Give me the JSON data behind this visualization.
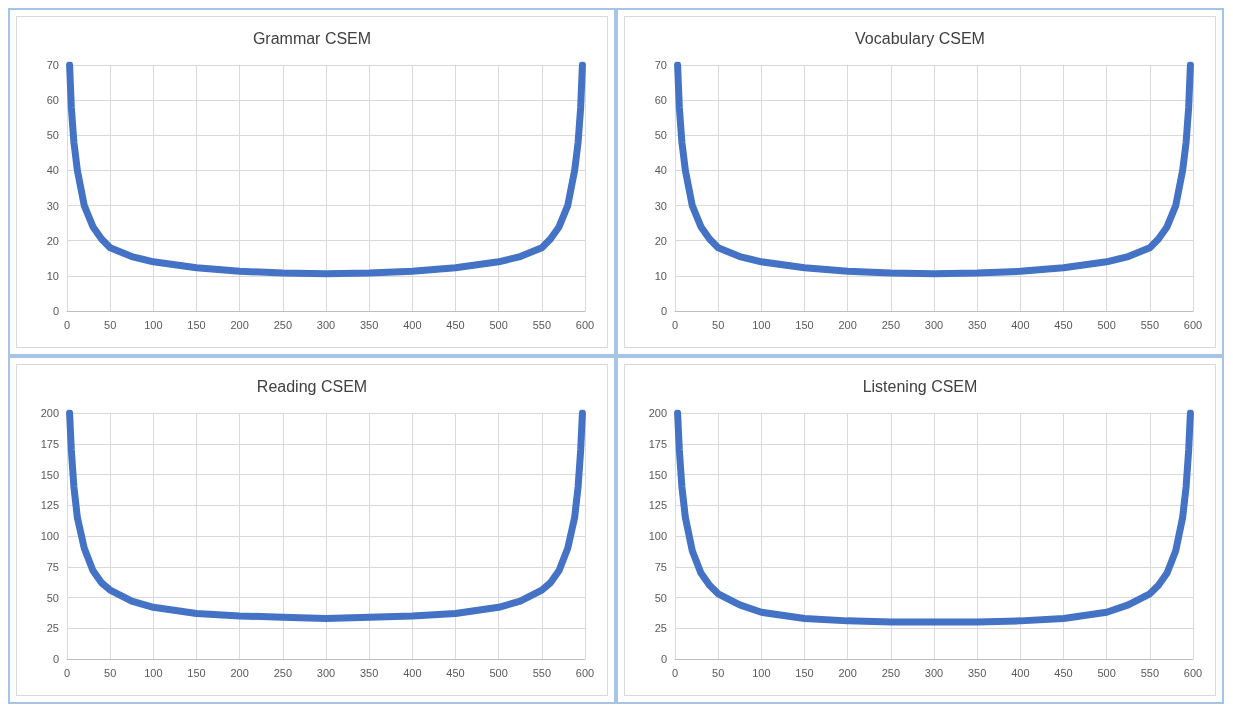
{
  "chart_data": [
    {
      "type": "line",
      "title": "Grammar CSEM",
      "color": "#4472c4",
      "line_style": "solid",
      "grid": true,
      "xlim": [
        0,
        600
      ],
      "xticks": [
        0,
        50,
        100,
        150,
        200,
        250,
        300,
        350,
        400,
        450,
        500,
        550,
        600
      ],
      "ylim": [
        0,
        70
      ],
      "yticks": [
        0,
        10,
        20,
        30,
        40,
        50,
        60,
        70
      ],
      "x": [
        3,
        5,
        8,
        12,
        20,
        30,
        40,
        50,
        75,
        100,
        150,
        200,
        250,
        300,
        350,
        400,
        450,
        500,
        525,
        550,
        560,
        570,
        580,
        588,
        592,
        595,
        597
      ],
      "values": [
        70,
        58,
        48,
        40,
        30,
        24,
        20.5,
        18,
        15.5,
        14,
        12.3,
        11.3,
        10.8,
        10.6,
        10.8,
        11.3,
        12.3,
        14,
        15.5,
        18,
        20.5,
        24,
        30,
        40,
        48,
        58,
        70
      ]
    },
    {
      "type": "line",
      "title": "Vocabulary CSEM",
      "color": "#4472c4",
      "line_style": "solid",
      "grid": true,
      "xlim": [
        0,
        600
      ],
      "xticks": [
        0,
        50,
        100,
        150,
        200,
        250,
        300,
        350,
        400,
        450,
        500,
        550,
        600
      ],
      "ylim": [
        0,
        70
      ],
      "yticks": [
        0,
        10,
        20,
        30,
        40,
        50,
        60,
        70
      ],
      "x": [
        3,
        5,
        8,
        12,
        20,
        30,
        40,
        50,
        75,
        100,
        150,
        200,
        250,
        300,
        350,
        400,
        450,
        500,
        525,
        550,
        560,
        570,
        580,
        588,
        592,
        595,
        597
      ],
      "values": [
        70,
        58,
        48,
        40,
        30,
        24,
        20.5,
        18,
        15.5,
        14,
        12.3,
        11.3,
        10.8,
        10.6,
        10.8,
        11.3,
        12.3,
        14,
        15.5,
        18,
        20.5,
        24,
        30,
        40,
        48,
        58,
        70
      ]
    },
    {
      "type": "line",
      "title": "Reading CSEM",
      "color": "#4472c4",
      "line_style": "solid",
      "grid": true,
      "xlim": [
        0,
        600
      ],
      "xticks": [
        0,
        50,
        100,
        150,
        200,
        250,
        300,
        350,
        400,
        450,
        500,
        550,
        600
      ],
      "ylim": [
        0,
        200
      ],
      "yticks": [
        0,
        25,
        50,
        75,
        100,
        125,
        150,
        175,
        200
      ],
      "x": [
        3,
        5,
        8,
        12,
        20,
        30,
        40,
        50,
        75,
        100,
        150,
        200,
        250,
        300,
        350,
        400,
        450,
        500,
        525,
        550,
        560,
        570,
        580,
        588,
        592,
        595,
        597
      ],
      "values": [
        200,
        170,
        140,
        115,
        90,
        72,
        62,
        56,
        47,
        42,
        37,
        35,
        34,
        33,
        34,
        35,
        37,
        42,
        47,
        56,
        62,
        72,
        90,
        115,
        140,
        170,
        200
      ]
    },
    {
      "type": "line",
      "title": "Listening CSEM",
      "color": "#4472c4",
      "line_style": "solid",
      "grid": true,
      "xlim": [
        0,
        600
      ],
      "xticks": [
        0,
        50,
        100,
        150,
        200,
        250,
        300,
        350,
        400,
        450,
        500,
        550,
        600
      ],
      "ylim": [
        0,
        200
      ],
      "yticks": [
        0,
        25,
        50,
        75,
        100,
        125,
        150,
        175,
        200
      ],
      "x": [
        3,
        5,
        8,
        12,
        20,
        30,
        40,
        50,
        75,
        100,
        150,
        200,
        250,
        300,
        350,
        400,
        450,
        500,
        525,
        550,
        560,
        570,
        580,
        588,
        592,
        595,
        597
      ],
      "values": [
        200,
        170,
        140,
        115,
        88,
        70,
        60,
        53,
        44,
        38,
        33,
        31,
        30,
        30,
        30,
        31,
        33,
        38,
        44,
        53,
        60,
        70,
        88,
        115,
        140,
        170,
        200
      ]
    }
  ]
}
